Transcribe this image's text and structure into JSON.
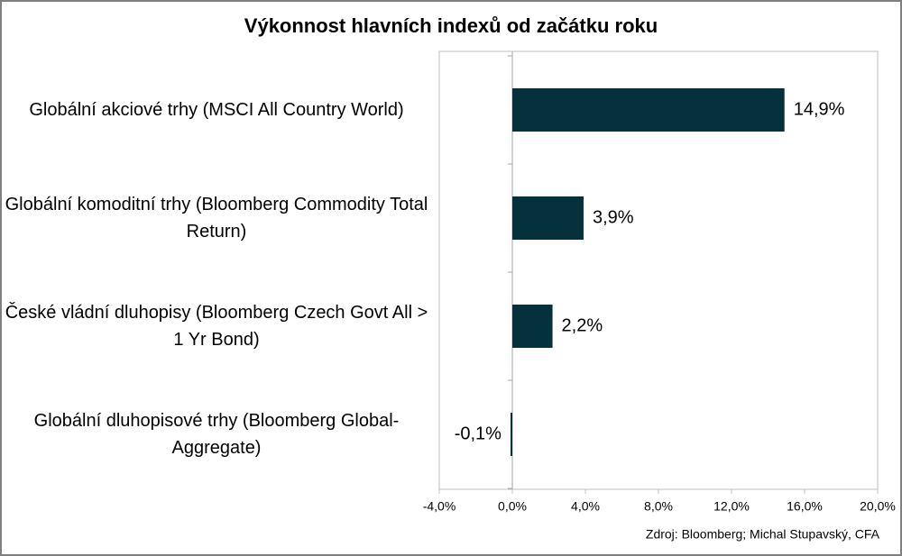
{
  "chart_data": {
    "type": "bar",
    "orientation": "horizontal",
    "title": "Výkonnost hlavních indexů od začátku roku",
    "categories": [
      "Globální akciové trhy (MSCI All Country World)",
      "Globální komoditní trhy (Bloomberg Commodity Total Return)",
      "České vládní dluhopisy (Bloomberg Czech Govt All > 1 Yr Bond)",
      "Globální dluhopisové trhy (Bloomberg Global-Aggregate)"
    ],
    "values": [
      14.9,
      3.9,
      2.2,
      -0.1
    ],
    "value_labels": [
      "14,9%",
      "3,9%",
      "2,2%",
      "-0,1%"
    ],
    "color": "#05313c",
    "xlim": [
      -4,
      20
    ],
    "xticks": [
      {
        "value": -4,
        "label": "-4,0%"
      },
      {
        "value": 0,
        "label": "0,0%"
      },
      {
        "value": 4,
        "label": "4,0%"
      },
      {
        "value": 8,
        "label": "8,0%"
      },
      {
        "value": 12,
        "label": "12,0%"
      },
      {
        "value": 16,
        "label": "16,0%"
      },
      {
        "value": 20,
        "label": "20,0%"
      }
    ],
    "grid": false,
    "source": "Zdroj: Bloomberg; Michal Stupavský, CFA"
  }
}
